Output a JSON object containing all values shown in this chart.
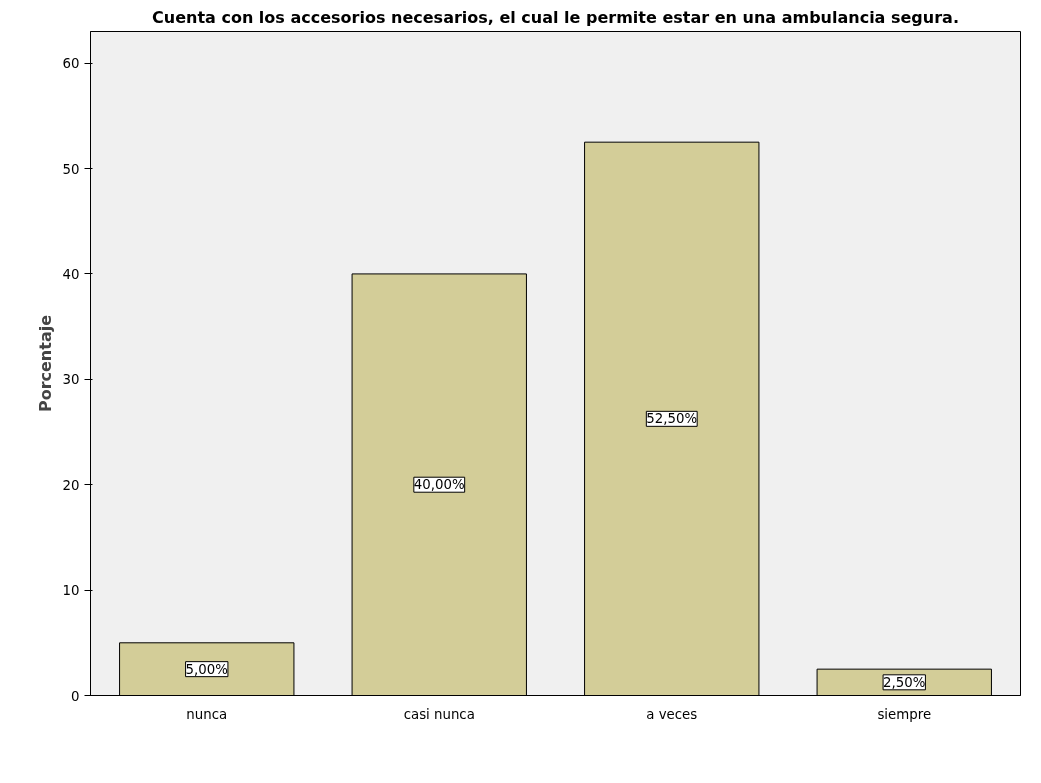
{
  "chart_data": {
    "type": "bar",
    "title": "Cuenta con los accesorios necesarios, el cual le permite estar en una ambulancia segura.",
    "ylabel": "Porcentaje",
    "categories": [
      "nunca",
      "casi nunca",
      "a veces",
      "siempre"
    ],
    "values": [
      5,
      40,
      52.5,
      2.5
    ],
    "value_labels": [
      "5,00%",
      "40,00%",
      "52,50%",
      "2,50%"
    ],
    "color": "#d3cd98",
    "ylim": [
      0,
      63
    ],
    "yticks": [
      0,
      10,
      20,
      30,
      40,
      50,
      60
    ],
    "grid": false
  }
}
